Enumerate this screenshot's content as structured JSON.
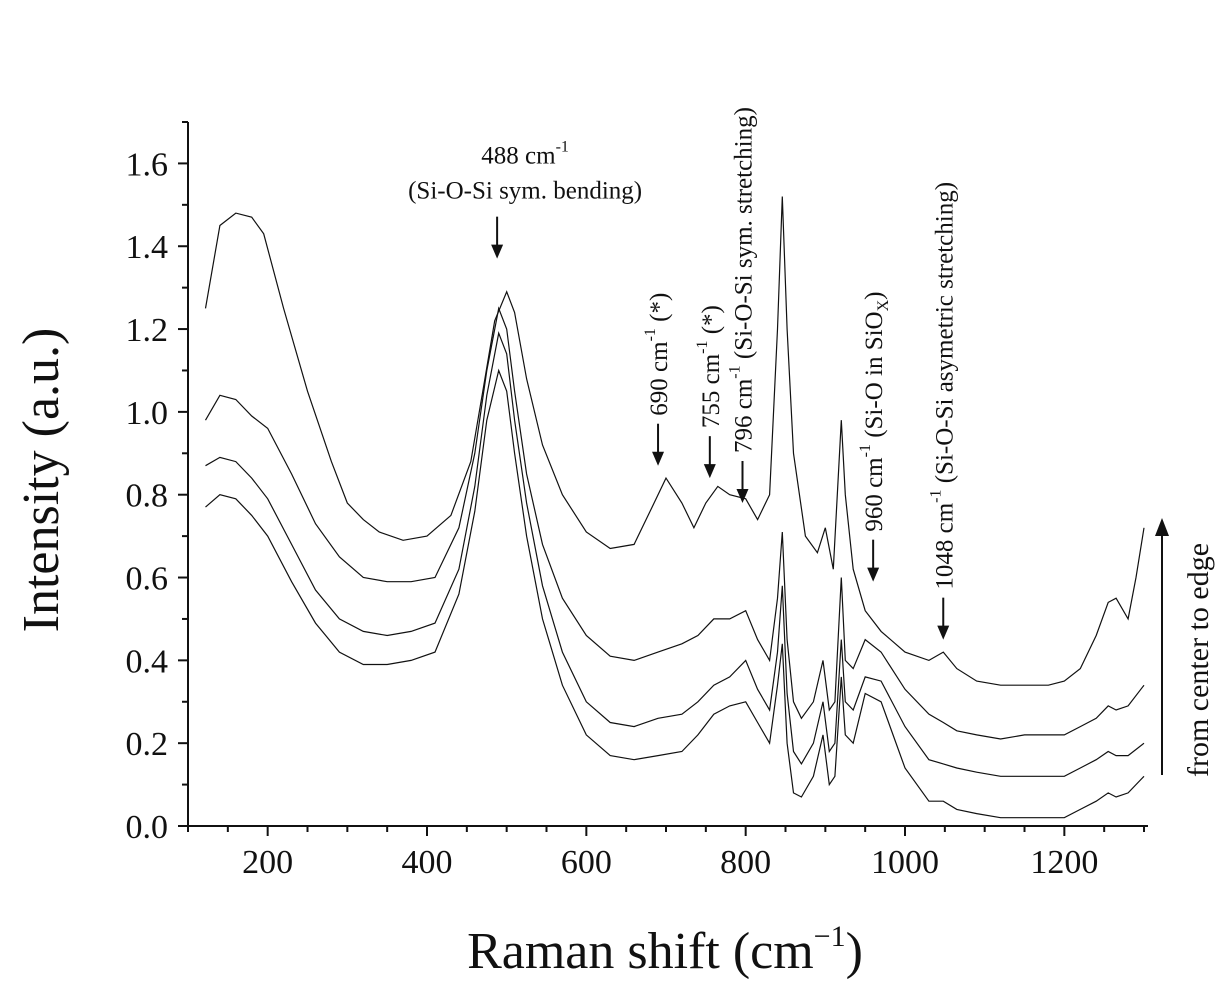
{
  "chart_data": {
    "type": "line",
    "xlabel": "Raman shift (cm",
    "xlabel_sup": "−1",
    "xlabel_end": ")",
    "ylabel": "Intensity (a.u.)",
    "xlim": [
      100,
      1305
    ],
    "ylim": [
      0.0,
      1.7
    ],
    "x_ticks": [
      200,
      400,
      600,
      800,
      1000,
      1200
    ],
    "y_ticks": [
      0.0,
      0.2,
      0.4,
      0.6,
      0.8,
      1.0,
      1.2,
      1.4,
      1.6
    ],
    "y_tick_labels": [
      "0.0",
      "0.2",
      "0.4",
      "0.6",
      "0.8",
      "1.0",
      "1.2",
      "1.4",
      "1.6"
    ],
    "grid": false,
    "side_note": "from center to edge",
    "series": [
      {
        "x": [
          122,
          140,
          160,
          180,
          195,
          220,
          250,
          280,
          300,
          320,
          340,
          370,
          400,
          430,
          455,
          470,
          485,
          500,
          510,
          525,
          545,
          570,
          600,
          630,
          660,
          680,
          700,
          720,
          735,
          750,
          765,
          780,
          800,
          815,
          830,
          840,
          846,
          852,
          860,
          875,
          890,
          900,
          910,
          920,
          925,
          935,
          950,
          970,
          1000,
          1030,
          1048,
          1065,
          1090,
          1120,
          1150,
          1180,
          1200,
          1220,
          1240,
          1255,
          1265,
          1280,
          1290,
          1300
        ],
        "y": [
          1.25,
          1.45,
          1.48,
          1.47,
          1.43,
          1.25,
          1.05,
          0.88,
          0.78,
          0.74,
          0.71,
          0.69,
          0.7,
          0.75,
          0.88,
          1.05,
          1.22,
          1.29,
          1.24,
          1.08,
          0.92,
          0.8,
          0.71,
          0.67,
          0.68,
          0.76,
          0.84,
          0.78,
          0.72,
          0.78,
          0.82,
          0.8,
          0.79,
          0.74,
          0.8,
          1.2,
          1.52,
          1.2,
          0.9,
          0.7,
          0.66,
          0.72,
          0.62,
          0.98,
          0.8,
          0.62,
          0.52,
          0.47,
          0.42,
          0.4,
          0.42,
          0.38,
          0.35,
          0.34,
          0.34,
          0.34,
          0.35,
          0.38,
          0.46,
          0.54,
          0.55,
          0.5,
          0.6,
          0.72
        ]
      },
      {
        "x": [
          122,
          140,
          160,
          180,
          200,
          230,
          260,
          290,
          320,
          350,
          380,
          410,
          440,
          460,
          475,
          490,
          500,
          510,
          525,
          545,
          570,
          600,
          630,
          660,
          690,
          720,
          740,
          760,
          780,
          800,
          815,
          830,
          840,
          846,
          852,
          860,
          870,
          885,
          897,
          905,
          912,
          920,
          925,
          935,
          950,
          970,
          1000,
          1030,
          1048,
          1065,
          1090,
          1120,
          1150,
          1180,
          1200,
          1220,
          1240,
          1255,
          1265,
          1280,
          1300
        ],
        "y": [
          0.98,
          1.04,
          1.03,
          0.99,
          0.96,
          0.85,
          0.73,
          0.65,
          0.6,
          0.59,
          0.59,
          0.6,
          0.72,
          0.9,
          1.1,
          1.25,
          1.2,
          1.05,
          0.85,
          0.68,
          0.55,
          0.46,
          0.41,
          0.4,
          0.42,
          0.44,
          0.46,
          0.5,
          0.5,
          0.52,
          0.45,
          0.4,
          0.55,
          0.71,
          0.45,
          0.3,
          0.26,
          0.3,
          0.4,
          0.28,
          0.3,
          0.6,
          0.4,
          0.38,
          0.45,
          0.42,
          0.33,
          0.27,
          0.25,
          0.23,
          0.22,
          0.21,
          0.22,
          0.22,
          0.22,
          0.24,
          0.26,
          0.29,
          0.28,
          0.29,
          0.34
        ]
      },
      {
        "x": [
          122,
          140,
          160,
          180,
          200,
          230,
          260,
          290,
          320,
          350,
          380,
          410,
          440,
          460,
          475,
          490,
          500,
          510,
          525,
          545,
          570,
          600,
          630,
          660,
          690,
          720,
          740,
          760,
          780,
          800,
          815,
          830,
          840,
          846,
          852,
          860,
          870,
          885,
          897,
          905,
          912,
          920,
          925,
          935,
          950,
          970,
          1000,
          1030,
          1048,
          1065,
          1090,
          1120,
          1150,
          1180,
          1200,
          1220,
          1240,
          1255,
          1265,
          1280,
          1300
        ],
        "y": [
          0.87,
          0.89,
          0.88,
          0.84,
          0.79,
          0.68,
          0.57,
          0.5,
          0.47,
          0.46,
          0.47,
          0.49,
          0.62,
          0.82,
          1.04,
          1.19,
          1.14,
          0.98,
          0.78,
          0.58,
          0.42,
          0.3,
          0.25,
          0.24,
          0.26,
          0.27,
          0.3,
          0.34,
          0.36,
          0.4,
          0.33,
          0.28,
          0.42,
          0.58,
          0.32,
          0.18,
          0.15,
          0.2,
          0.3,
          0.18,
          0.2,
          0.45,
          0.3,
          0.28,
          0.36,
          0.35,
          0.24,
          0.16,
          0.15,
          0.14,
          0.13,
          0.12,
          0.12,
          0.12,
          0.12,
          0.14,
          0.16,
          0.18,
          0.17,
          0.17,
          0.2
        ]
      },
      {
        "x": [
          122,
          140,
          160,
          180,
          200,
          230,
          260,
          290,
          320,
          350,
          380,
          410,
          440,
          460,
          475,
          490,
          500,
          510,
          525,
          545,
          570,
          600,
          630,
          660,
          690,
          720,
          740,
          760,
          780,
          800,
          815,
          830,
          840,
          846,
          852,
          860,
          870,
          885,
          897,
          905,
          912,
          920,
          925,
          935,
          950,
          970,
          1000,
          1030,
          1048,
          1065,
          1090,
          1120,
          1150,
          1180,
          1200,
          1220,
          1240,
          1255,
          1265,
          1280,
          1300
        ],
        "y": [
          0.77,
          0.8,
          0.79,
          0.75,
          0.7,
          0.59,
          0.49,
          0.42,
          0.39,
          0.39,
          0.4,
          0.42,
          0.56,
          0.76,
          0.98,
          1.1,
          1.05,
          0.9,
          0.7,
          0.5,
          0.34,
          0.22,
          0.17,
          0.16,
          0.17,
          0.18,
          0.22,
          0.27,
          0.29,
          0.3,
          0.25,
          0.2,
          0.34,
          0.44,
          0.2,
          0.08,
          0.07,
          0.12,
          0.22,
          0.1,
          0.12,
          0.36,
          0.22,
          0.2,
          0.32,
          0.3,
          0.14,
          0.06,
          0.06,
          0.04,
          0.03,
          0.02,
          0.02,
          0.02,
          0.02,
          0.04,
          0.06,
          0.08,
          0.07,
          0.08,
          0.12
        ]
      }
    ],
    "annotations": [
      {
        "x": 488,
        "y": 1.37,
        "vertical": false,
        "lines": [
          "488 cm",
          "(Si-O-Si sym. bending)"
        ],
        "sup": "-1"
      },
      {
        "x": 690,
        "y": 0.87,
        "vertical": true,
        "text": "690 cm",
        "sup": "-1",
        "tail": "  (*)"
      },
      {
        "x": 755,
        "y": 0.84,
        "vertical": true,
        "text": "755 cm",
        "sup": "-1",
        "tail": " (*)"
      },
      {
        "x": 796,
        "y": 0.78,
        "vertical": true,
        "text": "796 cm",
        "sup": "-1",
        "tail": " (Si-O-Si sym. stretching)"
      },
      {
        "x": 960,
        "y": 0.59,
        "vertical": true,
        "text": "960 cm",
        "sup": "-1",
        "tail": " (Si-O in SiO",
        "sub": "X",
        "tail2": ")"
      },
      {
        "x": 1048,
        "y": 0.45,
        "vertical": true,
        "text": "1048 cm",
        "sup": "-1",
        "tail": " (Si-O-Si asymetric stretching)"
      }
    ]
  }
}
